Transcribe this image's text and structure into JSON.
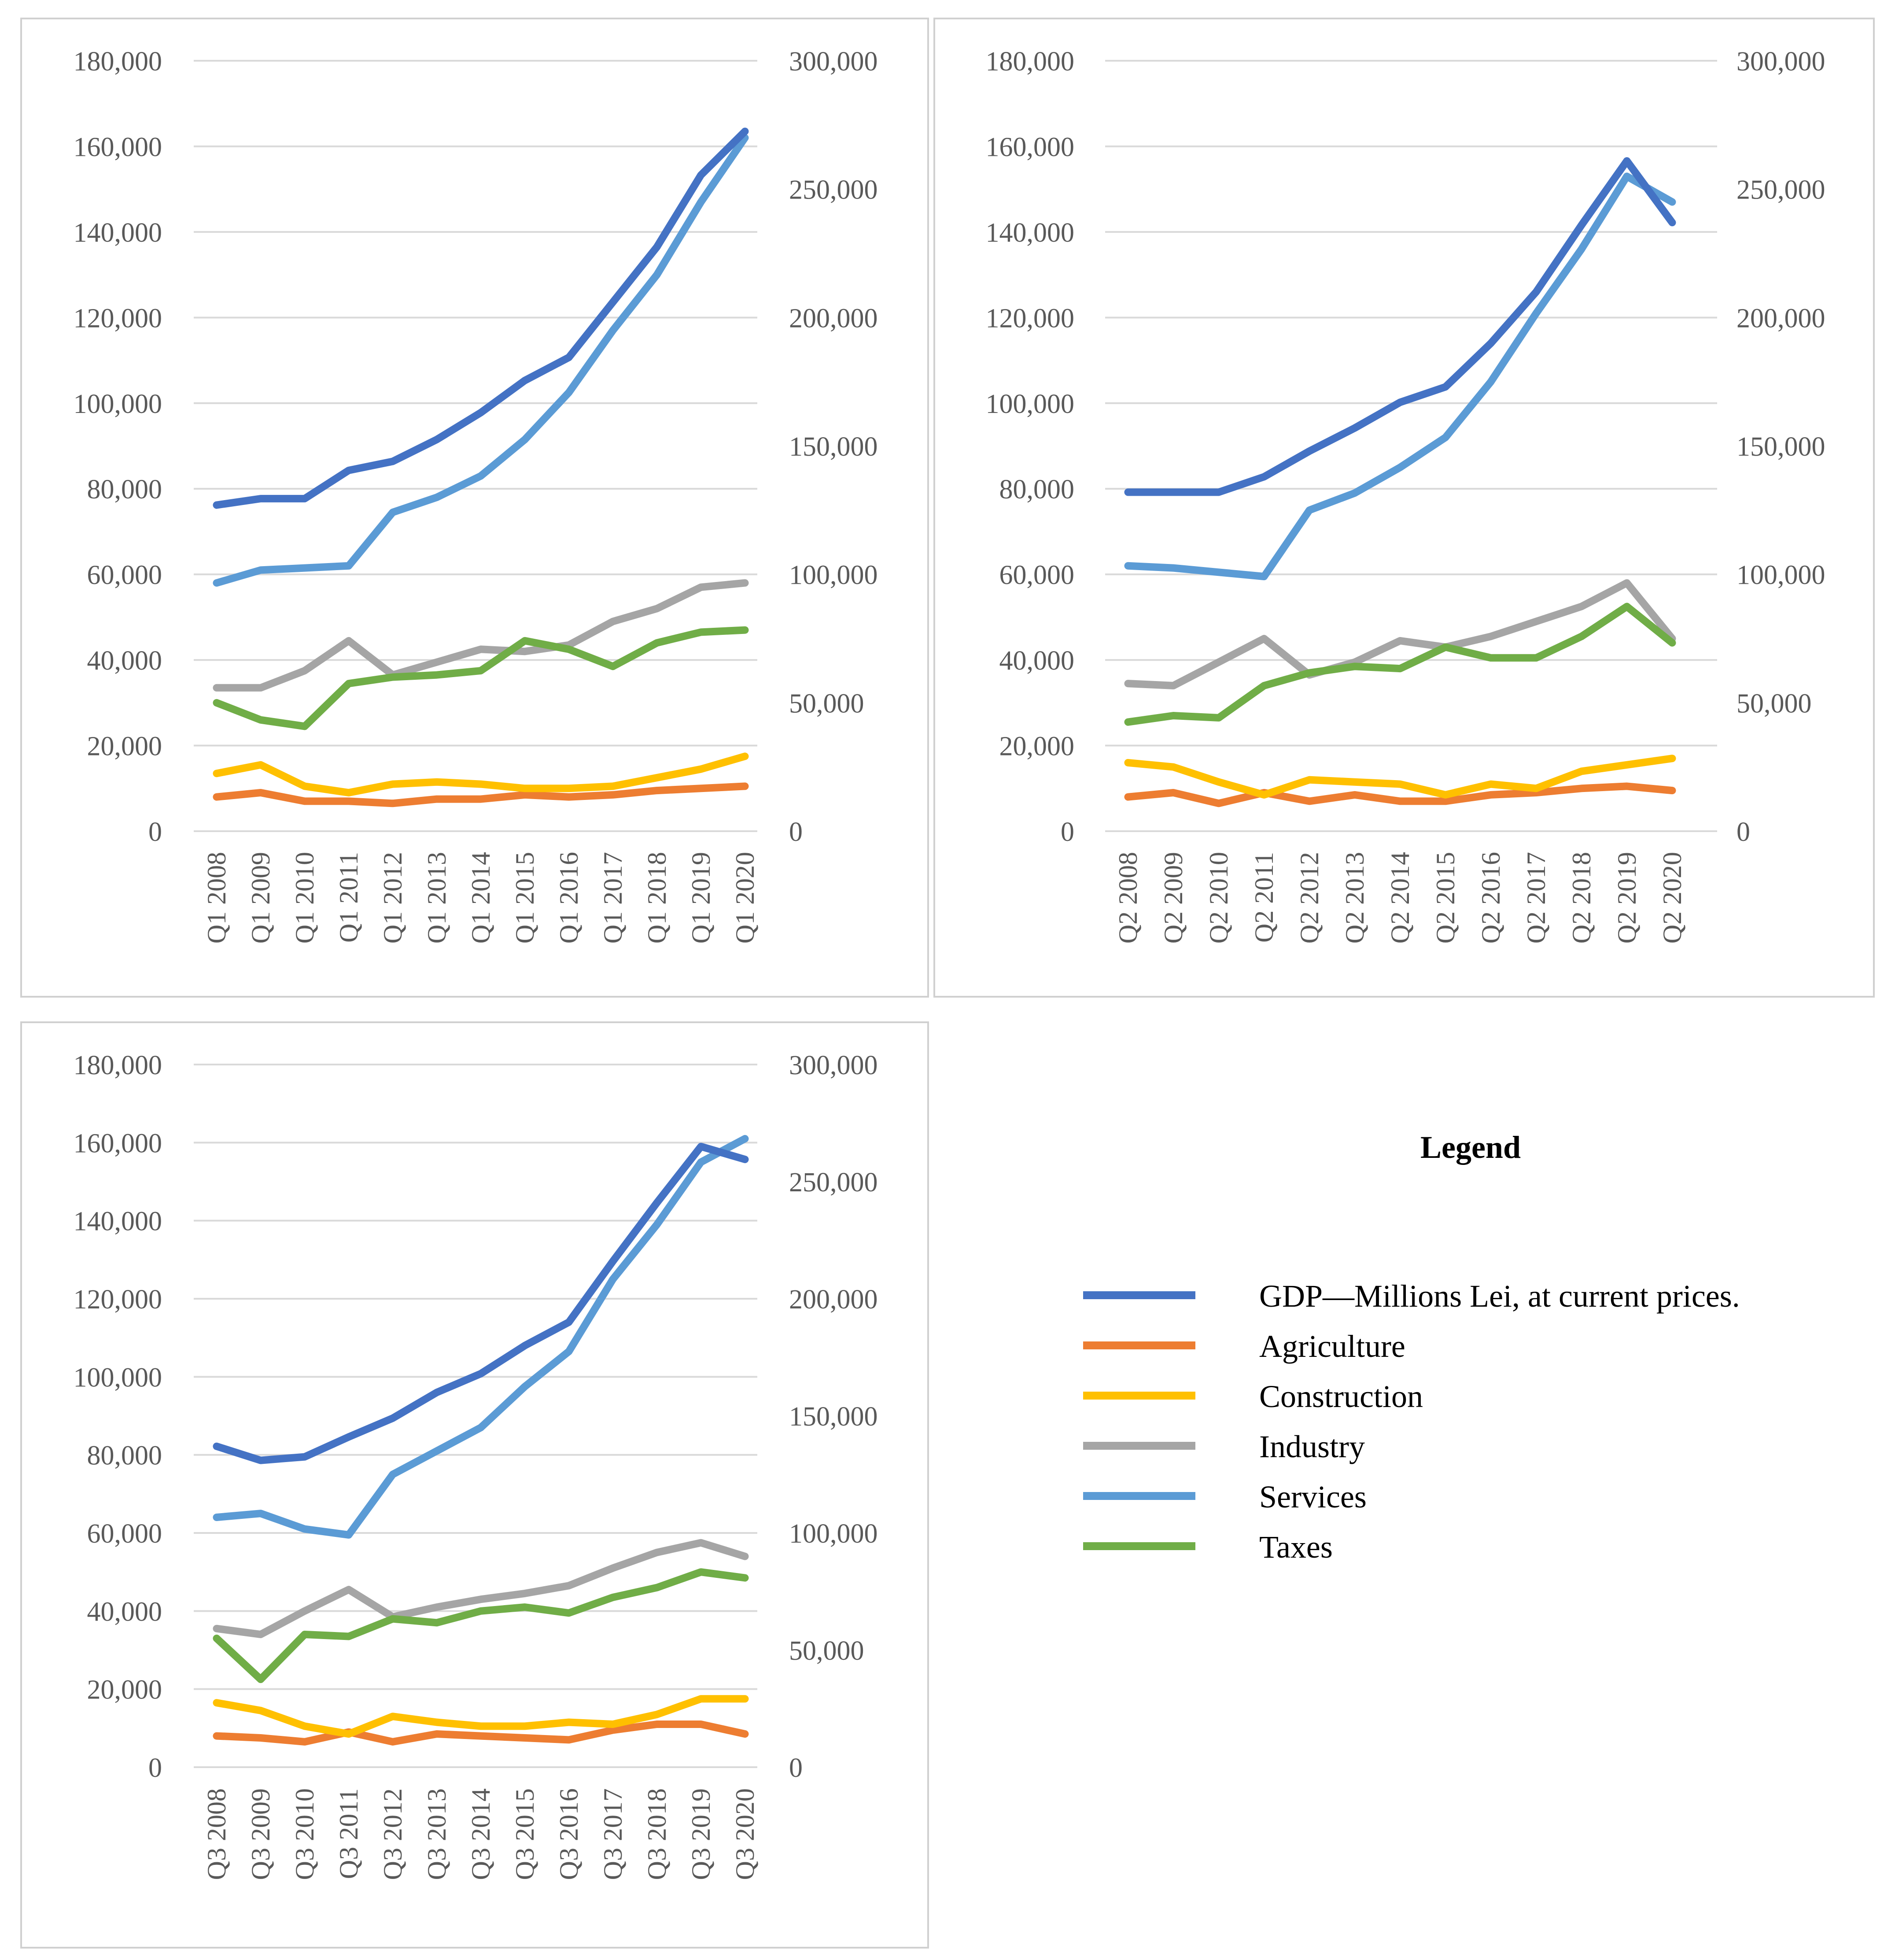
{
  "legend": {
    "title": "Legend",
    "entries": [
      {
        "label": "GDP—Millions Lei, at current prices.",
        "color": "#4472C4"
      },
      {
        "label": "Agriculture",
        "color": "#ED7D31"
      },
      {
        "label": "Construction",
        "color": "#FFC000"
      },
      {
        "label": "Industry",
        "color": "#A5A5A5"
      },
      {
        "label": "Services",
        "color": "#5B9BD5"
      },
      {
        "label": "Taxes",
        "color": "#70AD47"
      }
    ]
  },
  "chart_data": [
    {
      "type": "line",
      "title": "",
      "xlabel": "",
      "ylabel": "",
      "categories": [
        "Q1 2008",
        "Q1 2009",
        "Q1 2010",
        "Q1 2011",
        "Q1 2012",
        "Q1 2013",
        "Q1 2014",
        "Q1 2015",
        "Q1 2016",
        "Q1 2017",
        "Q1 2018",
        "Q1 2019",
        "Q1 2020"
      ],
      "ylim_left": [
        0,
        180000
      ],
      "ylim_right": [
        0,
        300000
      ],
      "yticks_left": [
        "0",
        "20,000",
        "40,000",
        "60,000",
        "80,000",
        "100,000",
        "120,000",
        "140,000",
        "160,000",
        "180,000"
      ],
      "yticks_right": [
        "0",
        "50,000",
        "100,000",
        "150,000",
        "200,000",
        "250,000",
        "300,000"
      ],
      "grid": true,
      "series": [
        {
          "name": "GDP—Millions Lei, at current prices.",
          "axis": "right",
          "color": "#4472C4",
          "values": [
            127000,
            129500,
            129500,
            140500,
            144000,
            152500,
            163000,
            175500,
            184500,
            206000,
            227500,
            255500,
            272500
          ]
        },
        {
          "name": "Agriculture",
          "axis": "left",
          "color": "#ED7D31",
          "values": [
            8000,
            9000,
            7000,
            7000,
            6500,
            7500,
            7500,
            8500,
            8000,
            8500,
            9500,
            10000,
            10500
          ]
        },
        {
          "name": "Construction",
          "axis": "left",
          "color": "#FFC000",
          "values": [
            13500,
            15500,
            10500,
            9000,
            11000,
            11500,
            11000,
            10000,
            10000,
            10500,
            12500,
            14500,
            17500
          ]
        },
        {
          "name": "Industry",
          "axis": "left",
          "color": "#A5A5A5",
          "values": [
            33500,
            33500,
            37500,
            44500,
            36500,
            39500,
            42500,
            42000,
            43500,
            49000,
            52000,
            57000,
            58000
          ]
        },
        {
          "name": "Services",
          "axis": "left",
          "color": "#5B9BD5",
          "values": [
            58000,
            61000,
            61500,
            62000,
            74500,
            78000,
            83000,
            91500,
            102500,
            117000,
            130000,
            147000,
            162000
          ]
        },
        {
          "name": "Taxes",
          "axis": "left",
          "color": "#70AD47",
          "values": [
            30000,
            26000,
            24500,
            34500,
            36000,
            36500,
            37500,
            44500,
            42500,
            38500,
            44000,
            46500,
            47000
          ]
        }
      ]
    },
    {
      "type": "line",
      "title": "",
      "xlabel": "",
      "ylabel": "",
      "categories": [
        "Q2 2008",
        "Q2 2009",
        "Q2 2010",
        "Q2 2011",
        "Q2 2012",
        "Q2 2013",
        "Q2 2014",
        "Q2 2015",
        "Q2 2016",
        "Q2 2017",
        "Q2 2018",
        "Q2 2019",
        "Q2 2020"
      ],
      "ylim_left": [
        0,
        180000
      ],
      "ylim_right": [
        0,
        300000
      ],
      "yticks_left": [
        "0",
        "20,000",
        "40,000",
        "60,000",
        "80,000",
        "100,000",
        "120,000",
        "140,000",
        "160,000",
        "180,000"
      ],
      "yticks_right": [
        "0",
        "50,000",
        "100,000",
        "150,000",
        "200,000",
        "250,000",
        "300,000"
      ],
      "grid": true,
      "series": [
        {
          "name": "GDP—Millions Lei, at current prices.",
          "axis": "right",
          "color": "#4472C4",
          "values": [
            132000,
            132000,
            132000,
            138000,
            148000,
            157000,
            167000,
            173000,
            190000,
            210000,
            236000,
            261000,
            237000
          ]
        },
        {
          "name": "Agriculture",
          "axis": "left",
          "color": "#ED7D31",
          "values": [
            8000,
            9000,
            6500,
            9000,
            7000,
            8500,
            7000,
            7000,
            8500,
            9000,
            10000,
            10500,
            9500
          ]
        },
        {
          "name": "Construction",
          "axis": "left",
          "color": "#FFC000",
          "values": [
            16000,
            15000,
            11500,
            8500,
            12000,
            11500,
            11000,
            8500,
            11000,
            10000,
            14000,
            15500,
            17000
          ]
        },
        {
          "name": "Industry",
          "axis": "left",
          "color": "#A5A5A5",
          "values": [
            34500,
            34000,
            39500,
            45000,
            36500,
            39500,
            44500,
            43000,
            45500,
            49000,
            52500,
            58000,
            45000
          ]
        },
        {
          "name": "Services",
          "axis": "left",
          "color": "#5B9BD5",
          "values": [
            62000,
            61500,
            60500,
            59500,
            75000,
            79000,
            85000,
            92000,
            105000,
            121000,
            136000,
            153000,
            147000
          ]
        },
        {
          "name": "Taxes",
          "axis": "left",
          "color": "#70AD47",
          "values": [
            25500,
            27000,
            26500,
            34000,
            37000,
            38500,
            38000,
            43000,
            40500,
            40500,
            45500,
            52500,
            44000
          ]
        }
      ]
    },
    {
      "type": "line",
      "title": "",
      "xlabel": "",
      "ylabel": "",
      "categories": [
        "Q3 2008",
        "Q3 2009",
        "Q3 2010",
        "Q3 2011",
        "Q3 2012",
        "Q3 2013",
        "Q3 2014",
        "Q3 2015",
        "Q3 2016",
        "Q3 2017",
        "Q3 2018",
        "Q3 2019",
        "Q3 2020"
      ],
      "ylim_left": [
        0,
        180000
      ],
      "ylim_right": [
        0,
        300000
      ],
      "yticks_left": [
        "0",
        "20,000",
        "40,000",
        "60,000",
        "80,000",
        "100,000",
        "120,000",
        "140,000",
        "160,000",
        "180,000"
      ],
      "yticks_right": [
        "0",
        "50,000",
        "100,000",
        "150,000",
        "200,000",
        "250,000",
        "300,000"
      ],
      "grid": true,
      "series": [
        {
          "name": "GDP—Millions Lei, at current prices.",
          "axis": "right",
          "color": "#4472C4",
          "values": [
            137000,
            131000,
            132500,
            141000,
            149000,
            160000,
            168000,
            180000,
            190000,
            216000,
            241000,
            265000,
            259500
          ]
        },
        {
          "name": "Agriculture",
          "axis": "left",
          "color": "#ED7D31",
          "values": [
            8000,
            7500,
            6500,
            9000,
            6500,
            8500,
            8000,
            7500,
            7000,
            9500,
            11000,
            11000,
            8500
          ]
        },
        {
          "name": "Construction",
          "axis": "left",
          "color": "#FFC000",
          "values": [
            16500,
            14500,
            10500,
            8500,
            13000,
            11500,
            10500,
            10500,
            11500,
            11000,
            13500,
            17500,
            17500
          ]
        },
        {
          "name": "Industry",
          "axis": "left",
          "color": "#A5A5A5",
          "values": [
            35500,
            34000,
            40000,
            45500,
            38500,
            41000,
            43000,
            44500,
            46500,
            51000,
            55000,
            57500,
            54000
          ]
        },
        {
          "name": "Services",
          "axis": "left",
          "color": "#5B9BD5",
          "values": [
            64000,
            65000,
            61000,
            59500,
            75000,
            81000,
            87000,
            97500,
            106500,
            125000,
            139000,
            155000,
            161000
          ]
        },
        {
          "name": "Taxes",
          "axis": "left",
          "color": "#70AD47",
          "values": [
            33000,
            22500,
            34000,
            33500,
            38000,
            37000,
            40000,
            41000,
            39500,
            43500,
            46000,
            50000,
            48500
          ]
        }
      ]
    }
  ]
}
